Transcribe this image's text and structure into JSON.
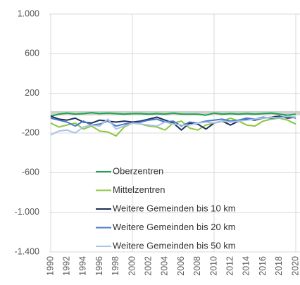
{
  "chart_data": {
    "type": "line",
    "categories": [
      "1990",
      null,
      "1992",
      null,
      "1994",
      null,
      "1996",
      null,
      "1998",
      null,
      "2000",
      null,
      "2002",
      null,
      "2004",
      null,
      "2006",
      null,
      "2008",
      null,
      "2010",
      null,
      "2012",
      null,
      "2014",
      null,
      "2016",
      null,
      "2018",
      null,
      "2020"
    ],
    "series": [
      {
        "name": "Oberzentren",
        "color": "#1aa64a",
        "values": [
          -30,
          -10,
          0,
          -10,
          -5,
          5,
          -5,
          0,
          -5,
          -10,
          -5,
          -5,
          -10,
          -5,
          -10,
          0,
          -10,
          -10,
          -10,
          -20,
          0,
          -10,
          -5,
          -10,
          -5,
          -10,
          -5,
          0,
          -10,
          -20,
          -10
        ]
      },
      {
        "name": "Mittelzentren",
        "color": "#8cc63f",
        "values": [
          -100,
          -140,
          -120,
          -100,
          -160,
          -130,
          -180,
          -190,
          -230,
          -140,
          -100,
          -110,
          -130,
          -140,
          -170,
          -100,
          -80,
          -150,
          -170,
          -120,
          -100,
          -80,
          -50,
          -80,
          -120,
          -130,
          -80,
          -60,
          -50,
          -70,
          -110
        ]
      },
      {
        "name": "Weitere Gemeinden bis 10 km",
        "color": "#1f2d5c",
        "values": [
          -30,
          -60,
          -70,
          -50,
          -90,
          -100,
          -70,
          -80,
          -90,
          -80,
          -90,
          -80,
          -60,
          -40,
          -70,
          -100,
          -170,
          -100,
          -110,
          -160,
          -100,
          -80,
          -120,
          -80,
          -60,
          -70,
          -50,
          -40,
          -30,
          -50,
          -40
        ]
      },
      {
        "name": "Weitere Gemeinden bis 20 km",
        "color": "#4a78c8",
        "values": [
          -50,
          -70,
          -90,
          -130,
          -80,
          -120,
          -110,
          -80,
          -130,
          -110,
          -100,
          -90,
          -70,
          -60,
          -90,
          -80,
          -130,
          -90,
          -100,
          -80,
          -70,
          -60,
          -80,
          -70,
          -50,
          -60,
          -40,
          -50,
          -40,
          -30,
          -50
        ]
      },
      {
        "name": "Weitere Gemeinden bis 50 km",
        "color": "#a9c4e8",
        "values": [
          -220,
          -180,
          -170,
          -200,
          -140,
          -120,
          -130,
          -60,
          -160,
          -130,
          -100,
          -110,
          -120,
          -130,
          -90,
          -110,
          -120,
          -120,
          -100,
          -90,
          -100,
          -80,
          -90,
          -80,
          -70,
          -60,
          -50,
          -40,
          -50,
          -30,
          -40
        ]
      }
    ],
    "ylim": [
      -1400,
      1000
    ],
    "yticks": [
      {
        "value": 1000,
        "label": "1.000"
      },
      600,
      200,
      -200,
      -600,
      {
        "value": -1000,
        "label": "-1.000"
      },
      {
        "value": -1400,
        "label": "-1.400"
      }
    ],
    "grid": true,
    "legend": "lower center"
  }
}
